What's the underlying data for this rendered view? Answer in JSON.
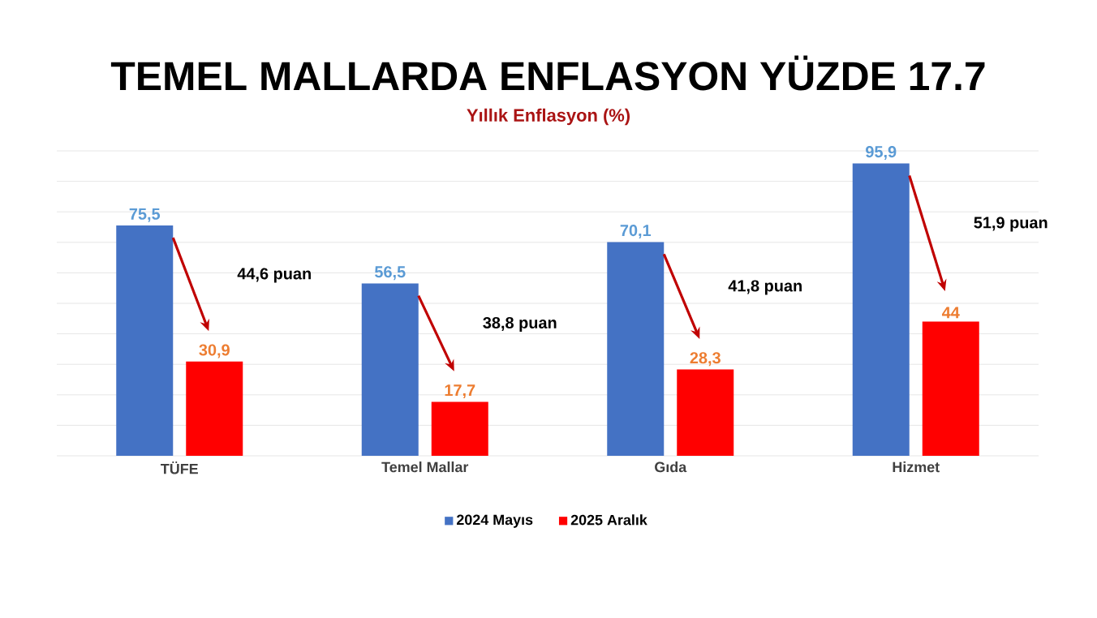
{
  "chart_data": {
    "type": "bar",
    "title": "TEMEL MALLARDA ENFLASYON YÜZDE 17.7",
    "subtitle": "Yıllık Enflasyon (%)",
    "categories": [
      "TÜFE",
      "Temel Mallar",
      "Gıda",
      "Hizmet"
    ],
    "series": [
      {
        "name": "2024 Mayıs",
        "color": "#4472c4",
        "values": [
          75.5,
          56.5,
          70.1,
          95.9
        ],
        "value_labels": [
          "75,5",
          "56,5",
          "70,1",
          "95,9"
        ]
      },
      {
        "name": "2025 Aralık",
        "color": "#ff0000",
        "values": [
          30.9,
          17.7,
          28.3,
          44
        ],
        "value_labels": [
          "30,9",
          "17,7",
          "28,3",
          "44"
        ]
      }
    ],
    "ylim": [
      0,
      100
    ],
    "yticks": [
      {
        "value": 0,
        "label": null
      },
      {
        "value": 10,
        "label": null
      },
      {
        "value": 20,
        "label": null
      },
      {
        "value": 30,
        "label": null
      },
      {
        "value": 40,
        "label": null
      },
      {
        "value": 50,
        "label": null
      },
      {
        "value": 60,
        "label": null
      },
      {
        "value": 70,
        "label": null
      },
      {
        "value": 80,
        "label": null
      },
      {
        "value": 90,
        "label": null
      },
      {
        "value": 100,
        "label": null
      }
    ],
    "tick_labels": "x",
    "grid": "y",
    "legend": "bottom",
    "annotations": [
      "44,6 puan",
      "38,8 puan",
      "41,8 puan",
      "51,9 puan"
    ]
  }
}
